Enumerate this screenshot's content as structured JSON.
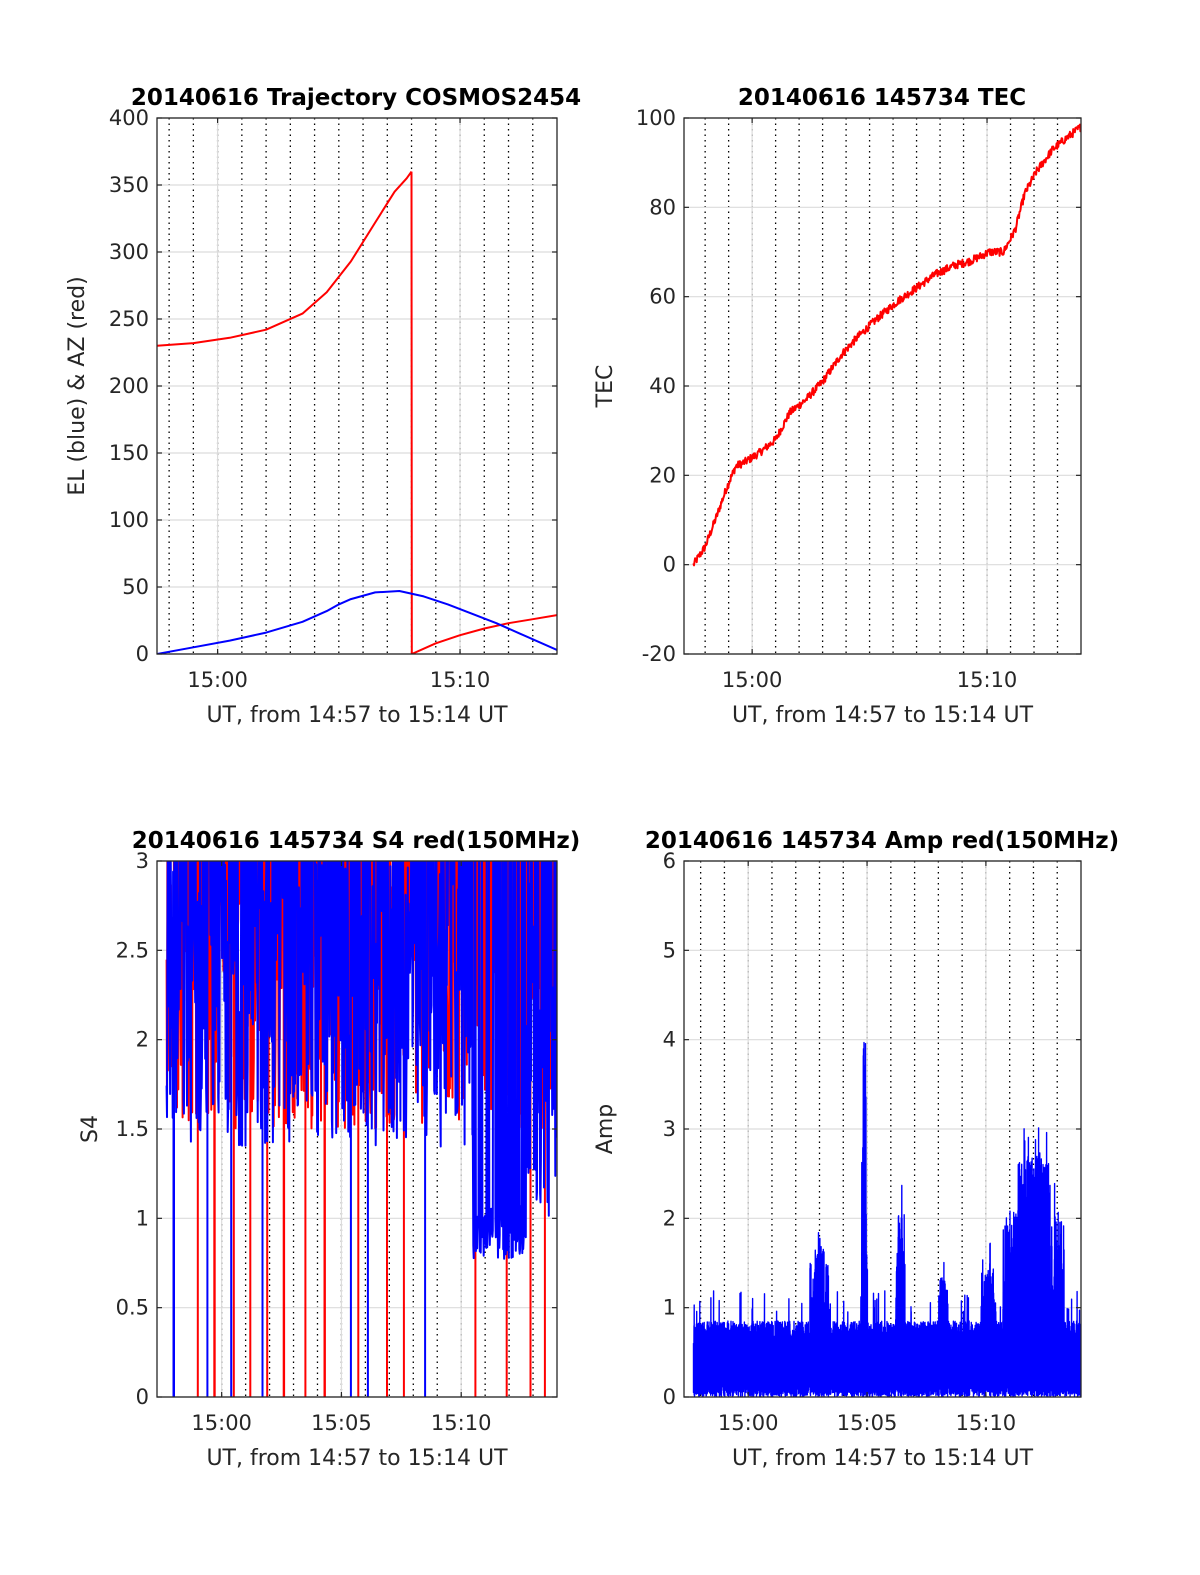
{
  "chart_data": [
    {
      "id": "traj",
      "type": "line",
      "title": "20140616 Trajectory COSMOS2454",
      "xlabel": "UT, from 14:57 to 15:14 UT",
      "ylabel": "EL (blue) & AZ (red)",
      "xlim": [
        897.5,
        914.0
      ],
      "ylim": [
        0,
        400
      ],
      "yticks": [
        0,
        50,
        100,
        150,
        200,
        250,
        300,
        350,
        400
      ],
      "xticks": [
        {
          "v": 900,
          "label": "15:00"
        },
        {
          "v": 910,
          "label": "15:10"
        }
      ],
      "grid": true,
      "minor_dotted_grid": true,
      "series": [
        {
          "color": "#ff0000",
          "x": [
            897.5,
            899,
            900.5,
            902,
            903.5,
            904.5,
            905.5,
            906.5,
            907.3,
            907.8,
            908.0
          ],
          "y": [
            230,
            232,
            236,
            242,
            254,
            270,
            293,
            322,
            345,
            355,
            360
          ]
        },
        {
          "color": "#ff0000",
          "x": [
            908.0,
            908.01,
            909,
            910,
            911,
            912,
            913,
            914
          ],
          "y": [
            360,
            0,
            8,
            14,
            19,
            23,
            26,
            29
          ]
        },
        {
          "color": "#0000ff",
          "x": [
            897.5,
            899,
            900.5,
            902,
            903.5,
            904.5,
            905,
            905.5,
            906.5,
            907.5,
            908.5,
            909.5,
            910.5,
            911.5,
            912.5,
            914
          ],
          "y": [
            0,
            5,
            10,
            16,
            24,
            32,
            37,
            41,
            46,
            47,
            43,
            37,
            30,
            23,
            15,
            3
          ]
        }
      ]
    },
    {
      "id": "tec",
      "type": "line",
      "title": "20140616 145734 TEC",
      "xlabel": "UT, from 14:57 to 15:14 UT",
      "ylabel": "TEC",
      "xlim": [
        897.1,
        914.0
      ],
      "ylim": [
        -20,
        100
      ],
      "yticks": [
        -20,
        0,
        20,
        40,
        60,
        80,
        100
      ],
      "xticks": [
        {
          "v": 900,
          "label": "15:00"
        },
        {
          "v": 910,
          "label": "15:10"
        }
      ],
      "grid": true,
      "minor_dotted_grid": true,
      "series": [
        {
          "color": "#ff0000",
          "noise": 0.9,
          "x": [
            897.5,
            898,
            898.5,
            898.9,
            899.3,
            899.7,
            900.3,
            901,
            901.6,
            902.3,
            903,
            903.8,
            904.5,
            905.3,
            906.2,
            907,
            907.8,
            908.6,
            909.3,
            910.1,
            910.7,
            911.2,
            911.6,
            912.1,
            912.8,
            913.5,
            914
          ],
          "y": [
            0,
            4,
            11,
            17,
            22,
            23,
            25,
            28,
            34,
            37,
            41,
            47,
            51,
            55,
            59,
            62,
            65,
            67,
            68,
            70,
            70,
            75,
            83,
            88,
            93,
            96,
            98
          ]
        }
      ]
    },
    {
      "id": "s4",
      "type": "line",
      "title": "20140616 145734 S4 red(150MHz)",
      "xlabel": "UT, from 14:57 to 15:14 UT",
      "ylabel": "S4",
      "xlim": [
        897.3,
        914.0
      ],
      "ylim": [
        0,
        3
      ],
      "yticks": [
        0,
        0.5,
        1,
        1.5,
        2,
        2.5,
        3
      ],
      "ytick_labels": [
        "0",
        "0.5",
        "1",
        "1.5",
        "2",
        "2.5",
        "3"
      ],
      "xticks": [
        {
          "v": 900,
          "label": "15:00"
        },
        {
          "v": 905,
          "label": "15:05"
        },
        {
          "v": 910,
          "label": "15:10"
        }
      ],
      "grid": true,
      "minor_dotted_grid": true,
      "series": [
        {
          "color": "#ff0000",
          "noisy": true,
          "x_range": [
            897.7,
            914.0
          ],
          "level": [
            2.2,
            2.8
          ],
          "spread": 1.0,
          "drops": [
            899.0,
            899.7,
            900.5,
            901.2,
            901.9,
            902.6,
            903.5,
            904.3,
            905.7,
            906.9,
            907.6,
            910.6,
            911.9,
            912.9,
            913.5
          ]
        },
        {
          "color": "#0000ff",
          "noisy": true,
          "segments": [
            {
              "x": [
                897.7,
                910.5
              ],
              "level": 2.3,
              "spread": 0.9
            },
            {
              "x": [
                910.5,
                912.7
              ],
              "level": 0.92,
              "spread": 0.15
            },
            {
              "x": [
                912.7,
                914.0
              ],
              "level": 2.0,
              "spread": 1.0
            }
          ],
          "drops": [
            898.0,
            899.4,
            900.4,
            901.7,
            905.4,
            906.1,
            908.5
          ]
        }
      ]
    },
    {
      "id": "amp",
      "type": "line",
      "title": "20140616 145734 Amp red(150MHz)",
      "xlabel": "UT, from 14:57 to 15:14 UT",
      "ylabel": "Amp",
      "xlim": [
        897.3,
        914.0
      ],
      "ylim": [
        0,
        6
      ],
      "yticks": [
        0,
        1,
        2,
        3,
        4,
        5,
        6
      ],
      "xticks": [
        {
          "v": 900,
          "label": "15:00"
        },
        {
          "v": 905,
          "label": "15:05"
        },
        {
          "v": 910,
          "label": "15:10"
        }
      ],
      "grid": true,
      "minor_dotted_grid": true,
      "series": [
        {
          "color": "#0000ff",
          "noisy": true,
          "x_range": [
            897.7,
            914.0
          ],
          "base": 0.6,
          "spikes": [
            {
              "x": 903.0,
              "w": 0.4,
              "h": 1.65
            },
            {
              "x": 904.9,
              "w": 0.12,
              "h": 4.05
            },
            {
              "x": 906.4,
              "w": 0.2,
              "h": 2.05
            },
            {
              "x": 908.2,
              "w": 0.2,
              "h": 1.35
            },
            {
              "x": 910.1,
              "w": 0.3,
              "h": 1.45
            },
            {
              "x": 912.0,
              "w": 1.3,
              "h": 2.7
            }
          ]
        }
      ]
    }
  ]
}
